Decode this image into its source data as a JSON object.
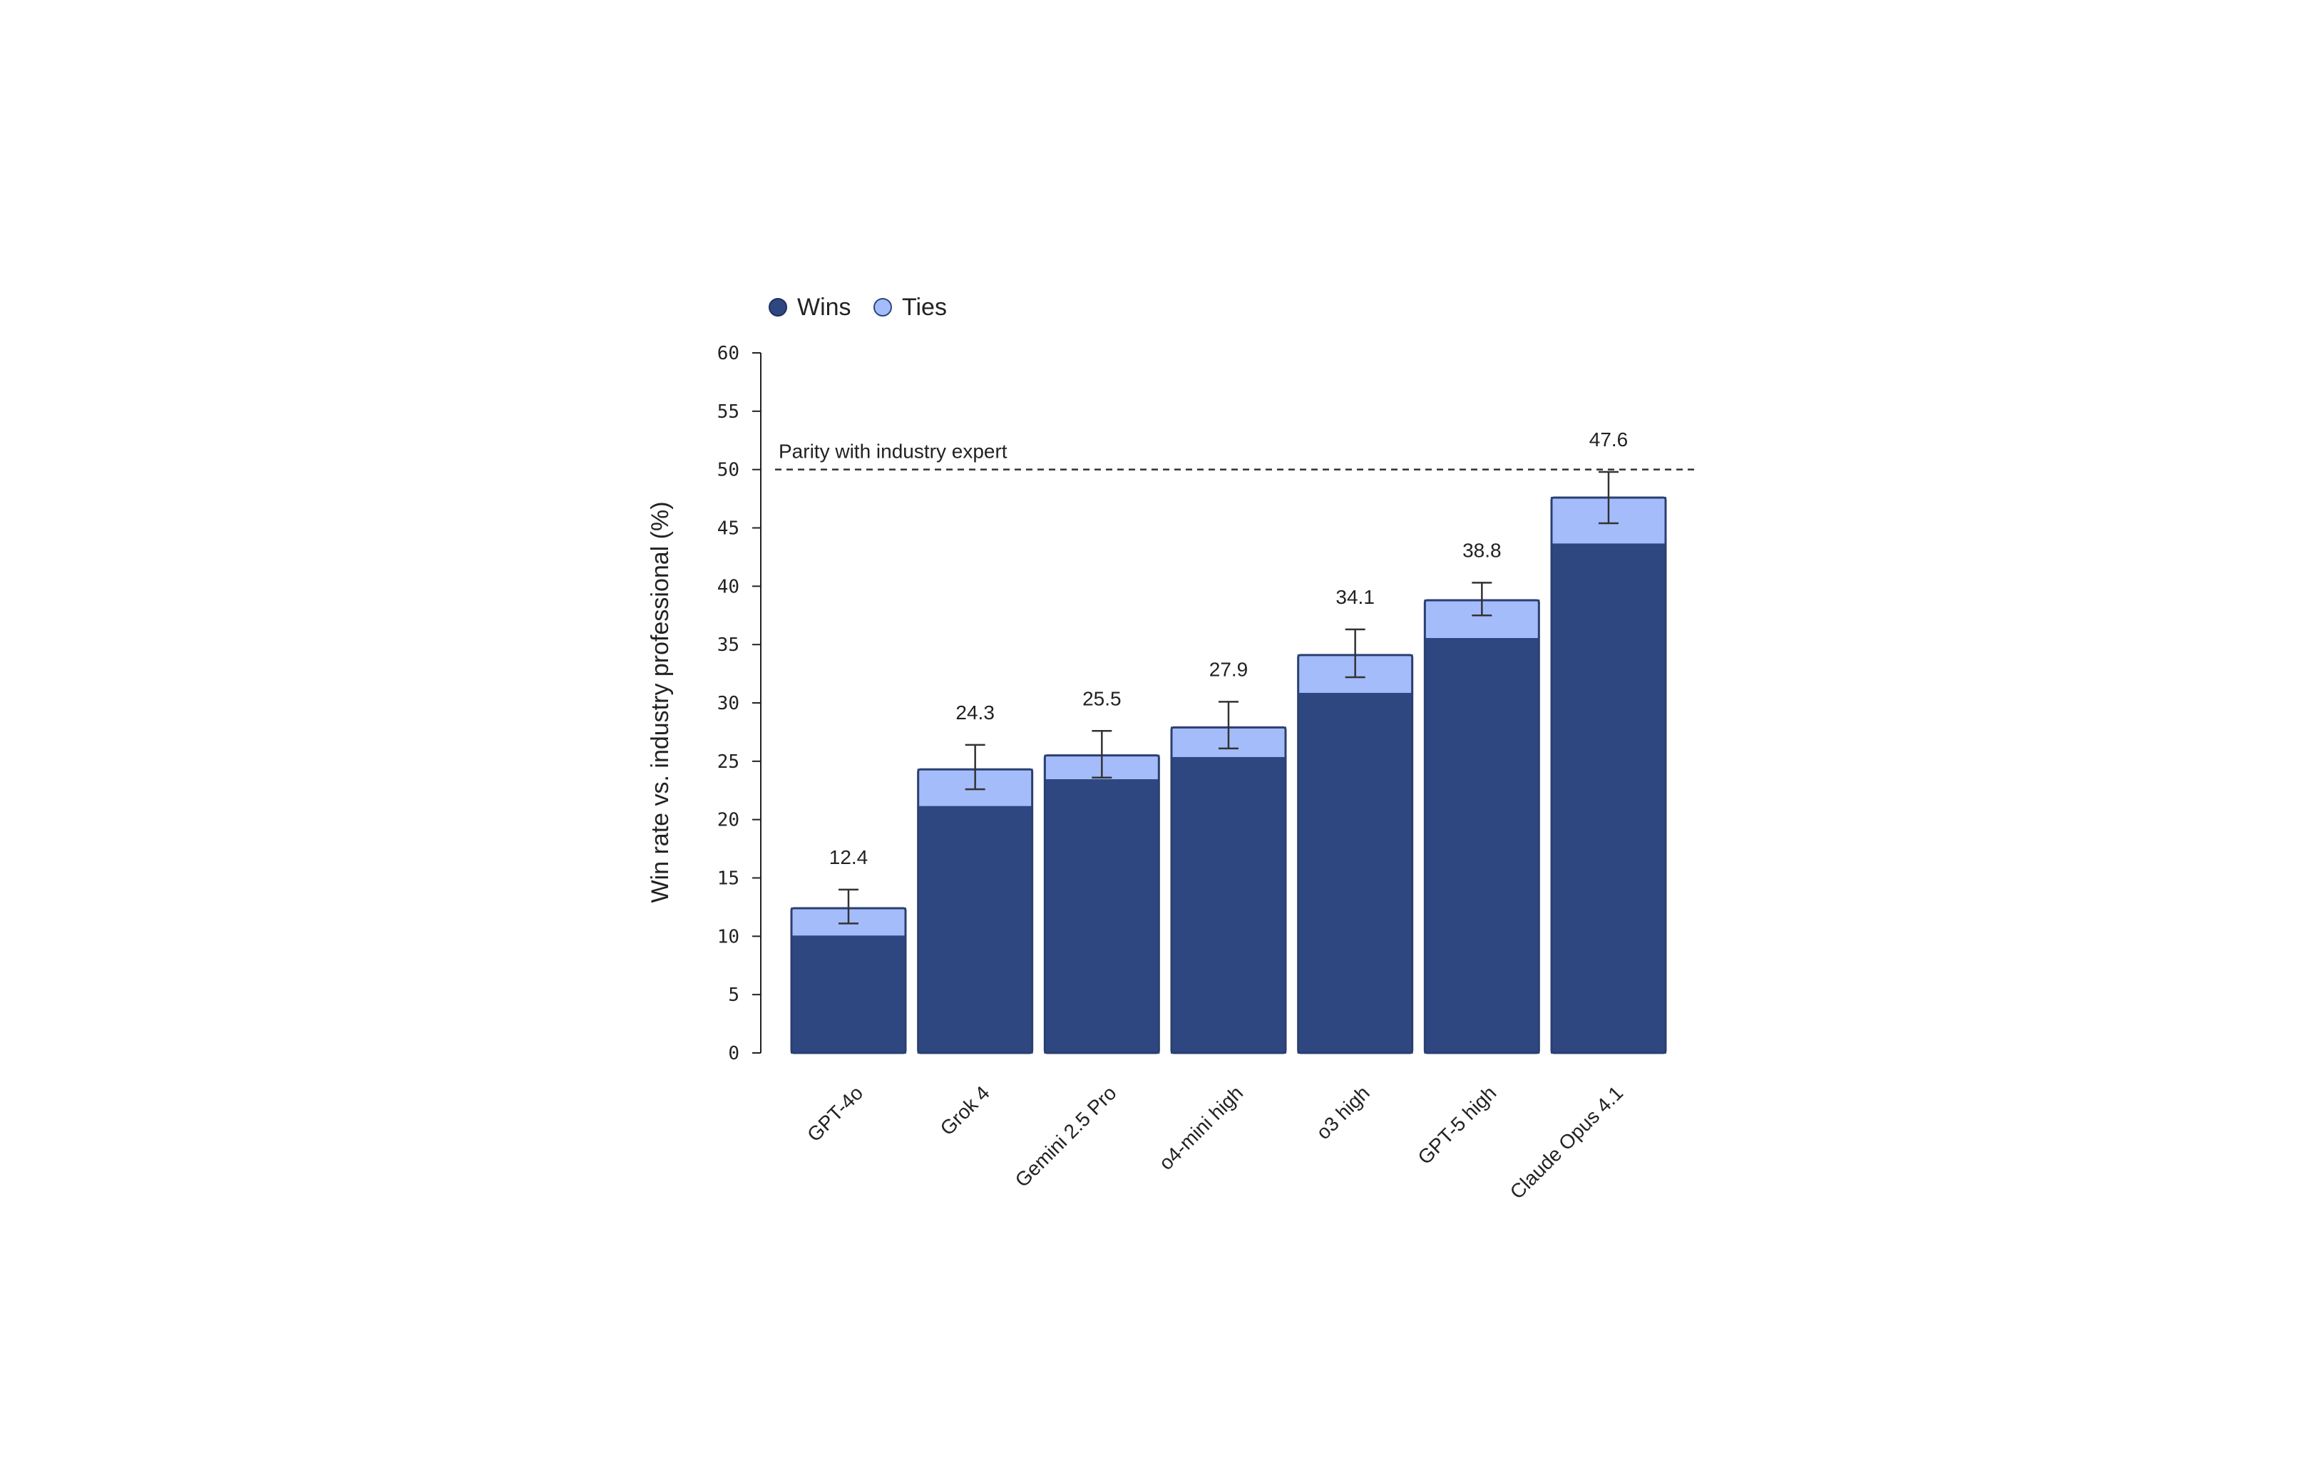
{
  "chart_data": {
    "type": "bar",
    "stacked": true,
    "categories": [
      "GPT-4o",
      "Grok 4",
      "Gemini 2.5 Pro",
      "o4-mini high",
      "o3 high",
      "GPT-5 high",
      "Claude Opus 4.1"
    ],
    "series": [
      {
        "name": "Wins",
        "color": "#2e4780",
        "values": [
          10.0,
          21.1,
          23.4,
          25.3,
          30.8,
          35.5,
          43.6
        ]
      },
      {
        "name": "Ties",
        "color": "#a4bcfa",
        "values": [
          2.4,
          3.2,
          2.1,
          2.6,
          3.3,
          3.3,
          4.0
        ]
      }
    ],
    "totals": [
      12.4,
      24.3,
      25.5,
      27.9,
      34.1,
      38.8,
      47.6
    ],
    "total_labels": [
      "12.4",
      "24.3",
      "25.5",
      "27.9",
      "34.1",
      "38.8",
      "47.6"
    ],
    "error_bars": [
      {
        "low": 11.1,
        "high": 14.0
      },
      {
        "low": 22.6,
        "high": 26.4
      },
      {
        "low": 23.6,
        "high": 27.6
      },
      {
        "low": 26.1,
        "high": 30.1
      },
      {
        "low": 32.2,
        "high": 36.3
      },
      {
        "low": 37.5,
        "high": 40.3
      },
      {
        "low": 45.4,
        "high": 49.8
      }
    ],
    "ylabel": "Win rate vs. industry professional (%)",
    "xlabel": "",
    "ylim": [
      0,
      60
    ],
    "yticks": [
      "0",
      "5",
      "10",
      "15",
      "20",
      "25",
      "30",
      "35",
      "40",
      "45",
      "50",
      "55",
      "60"
    ],
    "reference_line": {
      "value": 50,
      "label": "Parity with industry expert",
      "style": "dashed"
    },
    "legend": {
      "placement": "top-left",
      "entries": [
        "Wins",
        "Ties"
      ]
    },
    "grid": false
  }
}
